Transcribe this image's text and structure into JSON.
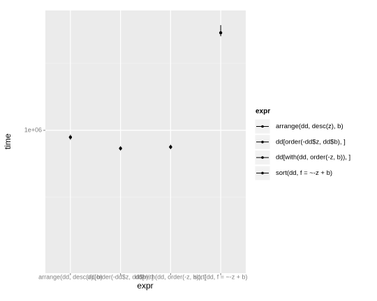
{
  "chart_data": {
    "type": "pointrange",
    "x_label": "expr",
    "y_label": "time",
    "legend_title": "expr",
    "categories": [
      "arrange(dd, desc(z), b)",
      "dd[order(-dd$z, dd$b), ]",
      "dd[with(dd, order(-z, b)), ]",
      "sort(dd, f = ~-z + b)"
    ],
    "values": [
      887000,
      732000,
      750000,
      5360000
    ],
    "lower": [
      850000,
      705000,
      722000,
      5050000
    ],
    "upper": [
      925000,
      760000,
      780000,
      6110000
    ],
    "color": "#000000",
    "log_y": true,
    "ylim": [
      85500,
      7870000
    ],
    "yticks": [
      {
        "value": 1000000,
        "label": "1e+06"
      }
    ],
    "y_minor_grid": [
      316228,
      3162278
    ],
    "grid": true
  }
}
